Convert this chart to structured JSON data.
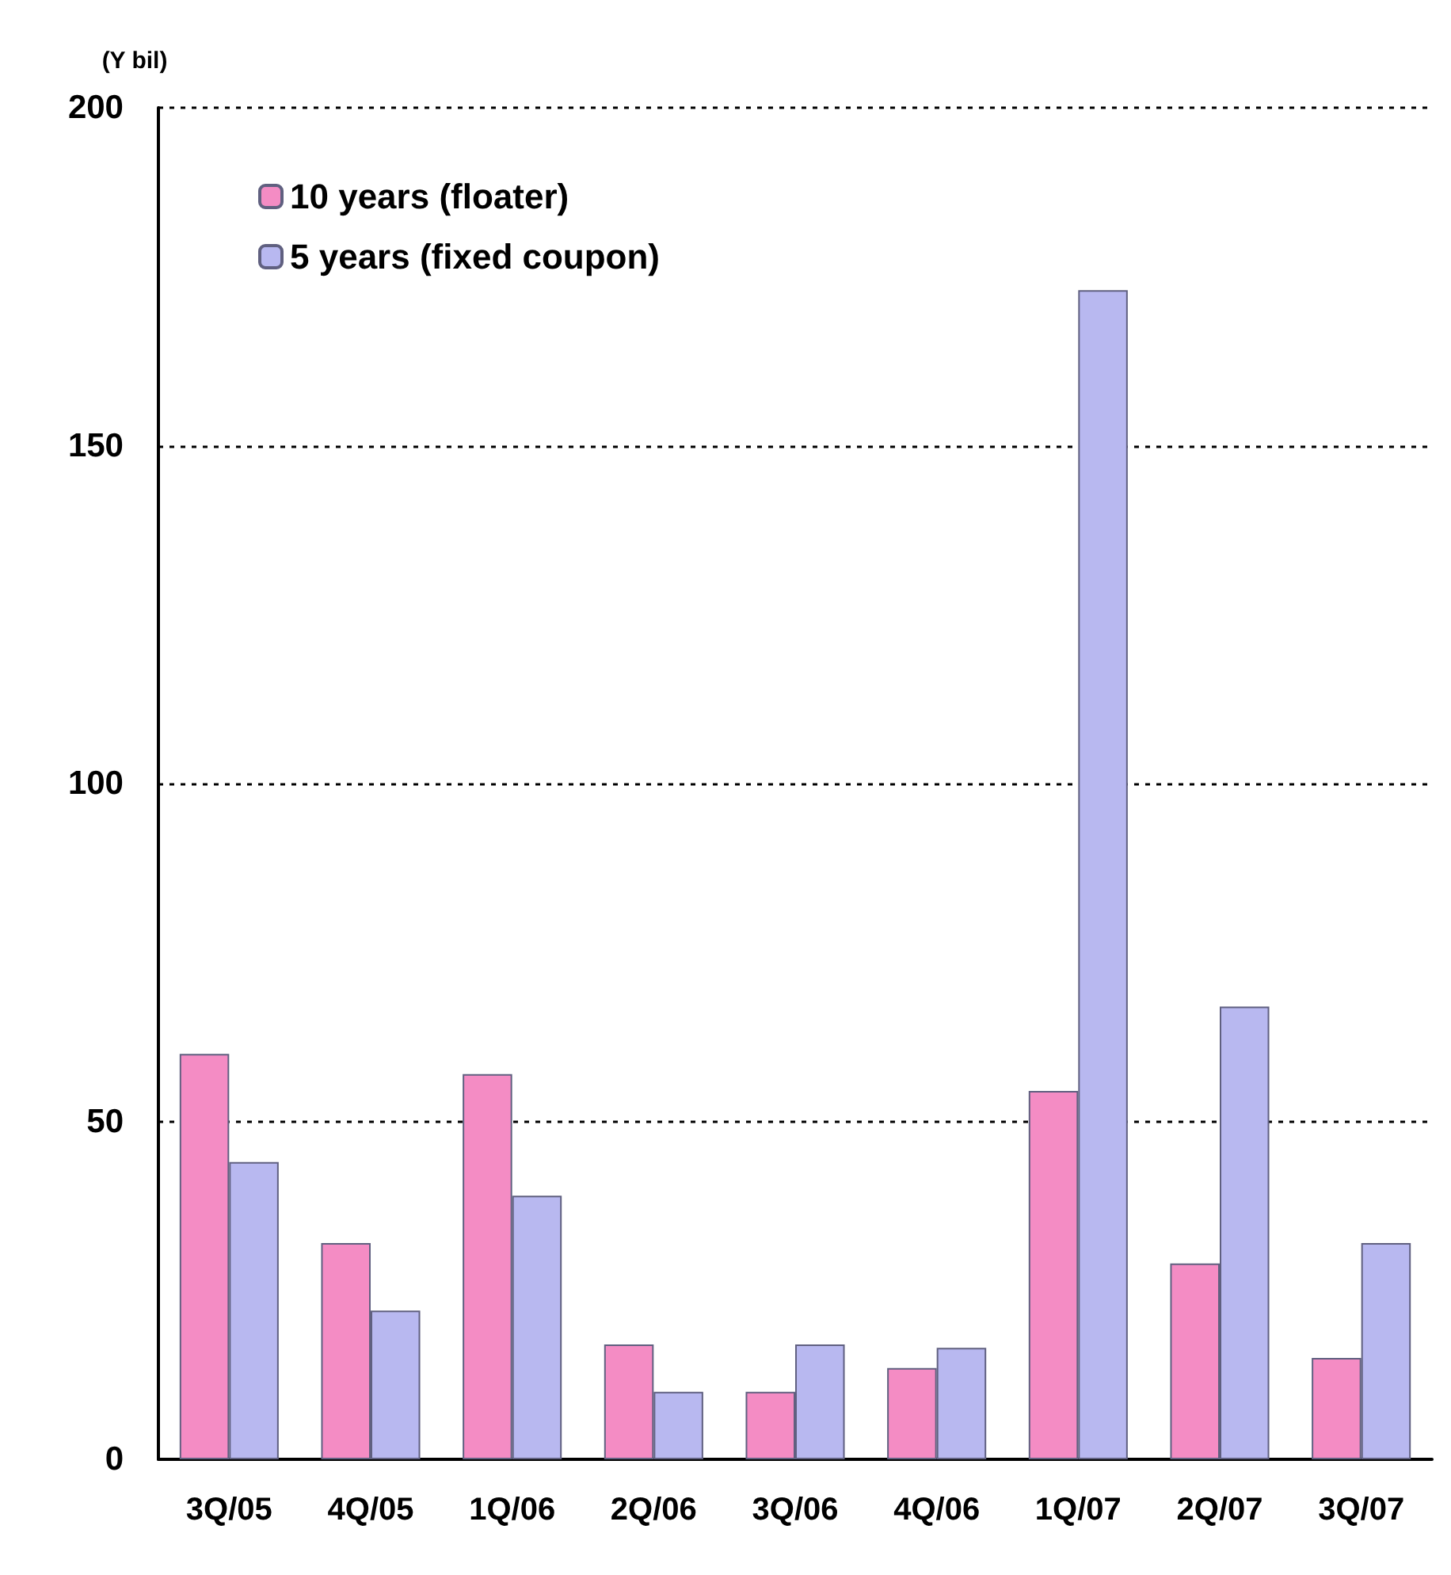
{
  "chart_data": {
    "type": "bar",
    "ylabel": "(Y bil)",
    "categories": [
      "3Q/05",
      "4Q/05",
      "1Q/06",
      "2Q/06",
      "3Q/06",
      "4Q/06",
      "1Q/07",
      "2Q/07",
      "3Q/07"
    ],
    "series": [
      {
        "name": "10 years (floater)",
        "color": "#f48cc4",
        "values": [
          60,
          32,
          57,
          17,
          10,
          13.5,
          54.5,
          29,
          15
        ]
      },
      {
        "name": "5 years (fixed coupon)",
        "color": "#b8b8f0",
        "values": [
          44,
          22,
          39,
          10,
          17,
          16.5,
          173,
          67,
          32
        ]
      }
    ],
    "ylim": [
      0,
      200
    ],
    "yticks": [
      0,
      50,
      100,
      150,
      200
    ],
    "grid": "y",
    "legend": "top left"
  }
}
